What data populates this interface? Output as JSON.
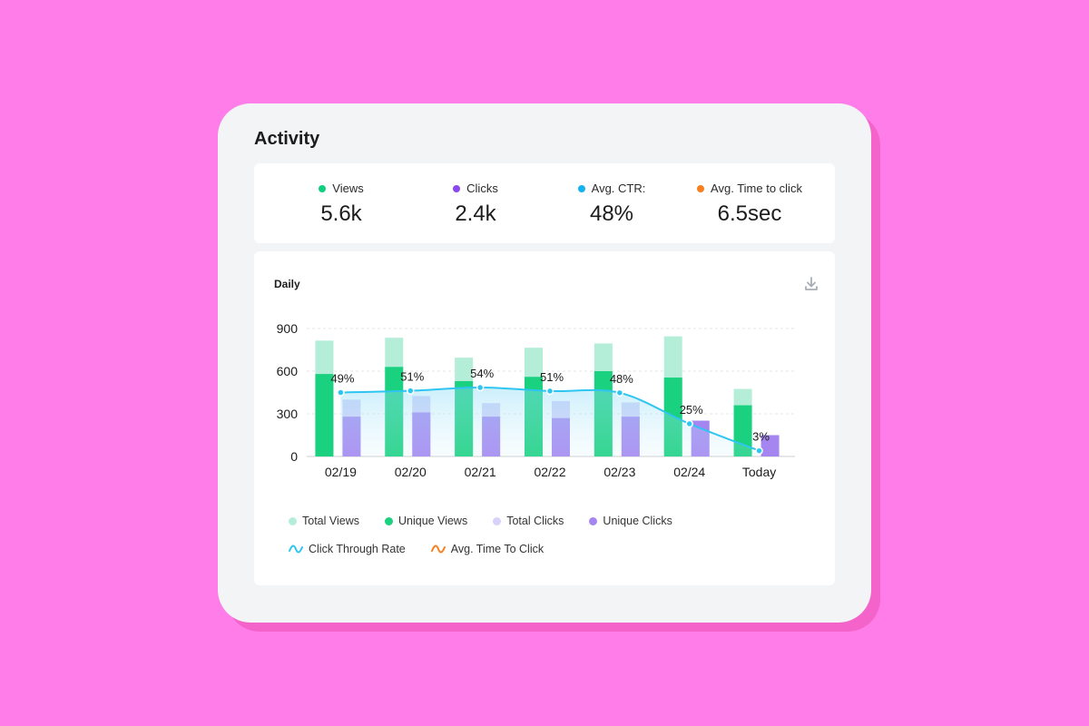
{
  "card": {
    "title": "Activity"
  },
  "stats": [
    {
      "label": "Views",
      "value": "5.6k",
      "color": "#0fcf7f"
    },
    {
      "label": "Clicks",
      "value": "2.4k",
      "color": "#8b48f0"
    },
    {
      "label": "Avg. CTR:",
      "value": "48%",
      "color": "#14b3ee"
    },
    {
      "label": "Avg. Time to click",
      "value": "6.5sec",
      "color": "#f77f1e"
    }
  ],
  "chart_panel": {
    "title": "Daily",
    "download_icon": "download-icon"
  },
  "chart_data": {
    "type": "bar",
    "categories": [
      "02/19",
      "02/20",
      "02/21",
      "02/22",
      "02/23",
      "02/24",
      "Today"
    ],
    "ylim": [
      0,
      900
    ],
    "yticks": [
      "0",
      "300",
      "600",
      "900"
    ],
    "grid": true,
    "series": [
      {
        "name": "Total Views",
        "values": [
          815,
          835,
          695,
          765,
          795,
          845,
          475
        ],
        "color": "#b4eed8"
      },
      {
        "name": "Unique Views",
        "values": [
          580,
          630,
          530,
          560,
          600,
          555,
          360
        ],
        "color": "#19d17f"
      },
      {
        "name": "Total Clicks",
        "values": [
          400,
          425,
          375,
          390,
          380,
          255,
          0
        ],
        "color": "#d6d2fa"
      },
      {
        "name": "Unique Clicks",
        "values": [
          280,
          310,
          280,
          270,
          280,
          250,
          150
        ],
        "color": "#a586f1"
      }
    ],
    "line": {
      "name": "Click Through Rate",
      "values": [
        450,
        462,
        485,
        460,
        448,
        230,
        40
      ],
      "labels": [
        "49%",
        "51%",
        "54%",
        "51%",
        "48%",
        "25%",
        "3%"
      ],
      "color": "#2ec6f1"
    },
    "legend_position": "bottom",
    "legend": [
      {
        "name": "Total Views",
        "color": "#b4eed8",
        "kind": "dot"
      },
      {
        "name": "Unique Views",
        "color": "#19d17f",
        "kind": "dot"
      },
      {
        "name": "Total Clicks",
        "color": "#d6d2fa",
        "kind": "dot"
      },
      {
        "name": "Unique Clicks",
        "color": "#a586f1",
        "kind": "dot"
      },
      {
        "name": "Click Through Rate",
        "color": "#2ec6f1",
        "kind": "wave"
      },
      {
        "name": "Avg. Time To Click",
        "color": "#f77f1e",
        "kind": "wave"
      }
    ]
  }
}
